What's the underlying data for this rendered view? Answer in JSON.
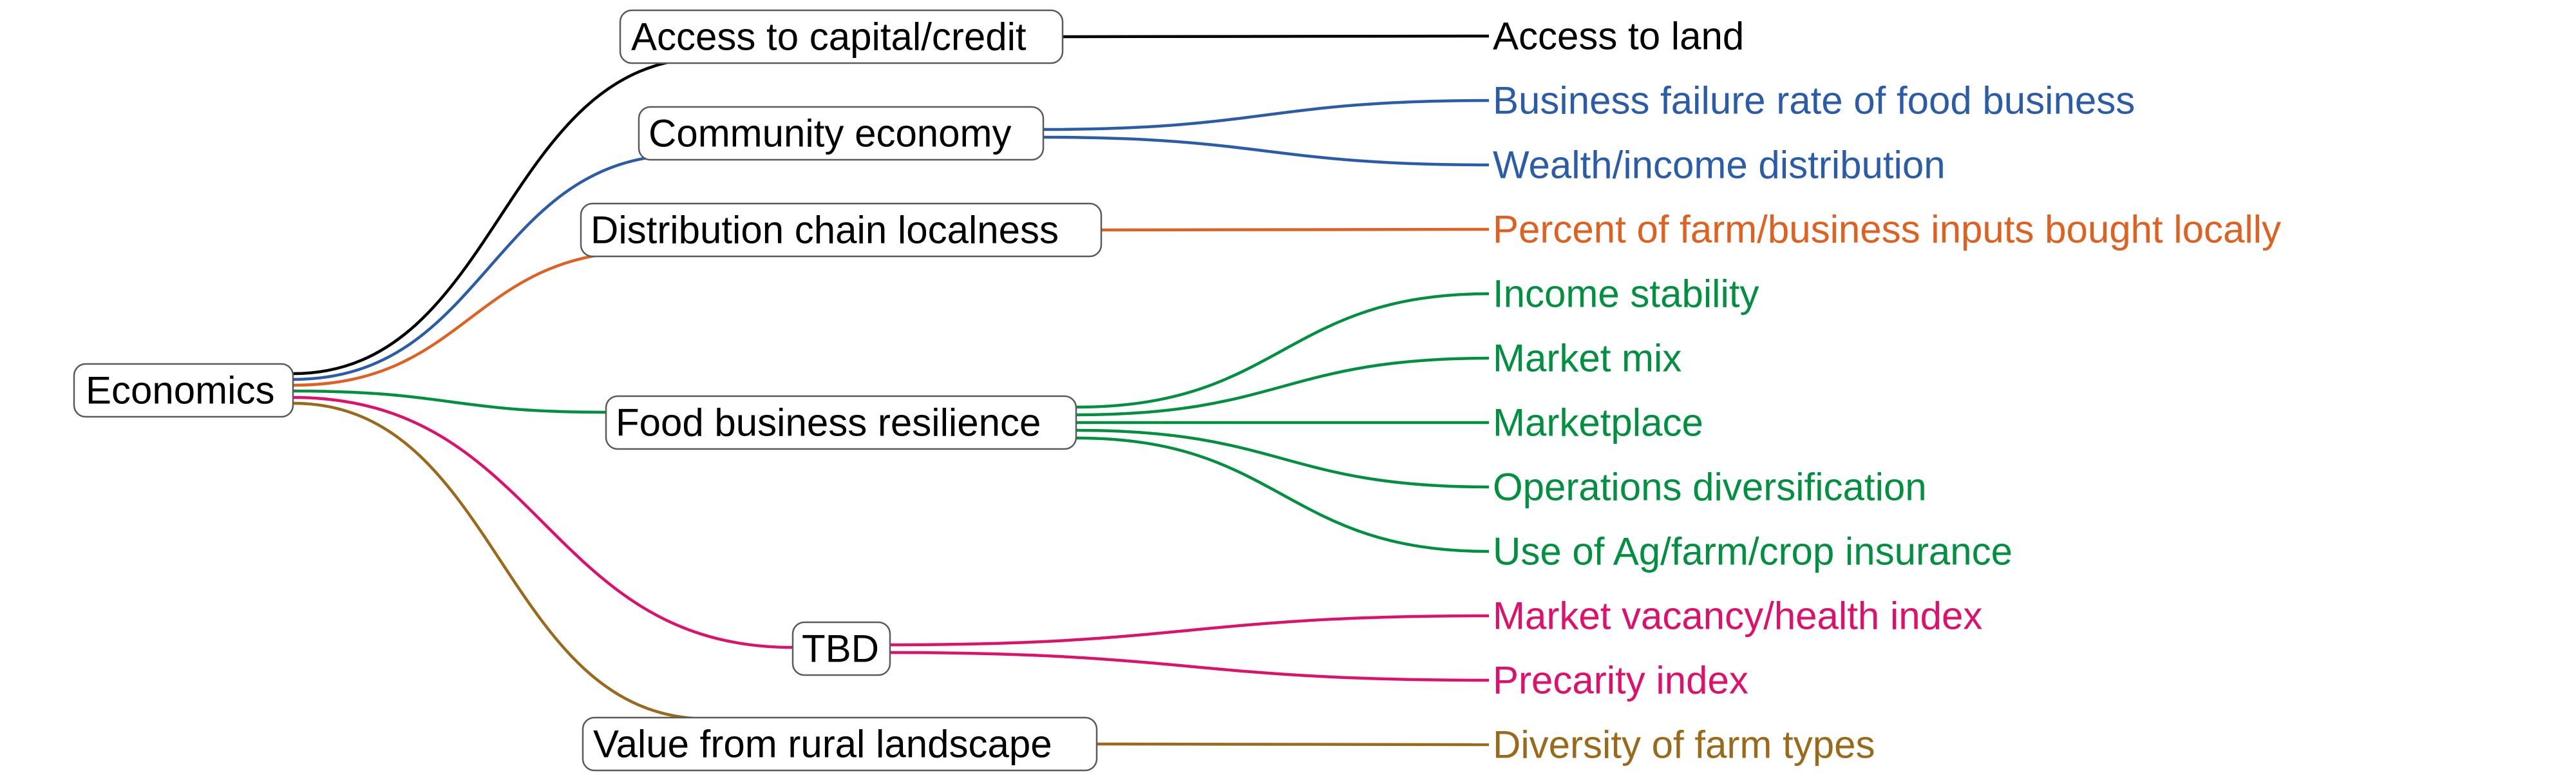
{
  "root": {
    "label": "Economics"
  },
  "branches": [
    {
      "id": "access-capital",
      "label": "Access to capital/credit",
      "color": "#000000",
      "leaves": [
        "Access to land"
      ]
    },
    {
      "id": "community-economy",
      "label": "Community economy",
      "color": "#2a5caa",
      "leaves": [
        "Business failure rate of food business",
        "Wealth/income distribution"
      ]
    },
    {
      "id": "distribution-chain",
      "label": "Distribution chain localness",
      "color": "#e06020",
      "leaves": [
        "Percent of farm/business inputs bought locally"
      ]
    },
    {
      "id": "food-business",
      "label": "Food business resilience",
      "color": "#009040",
      "leaves": [
        "Income stability",
        "Market mix",
        "Marketplace",
        "Operations diversification",
        "Use of Ag/farm/crop insurance"
      ]
    },
    {
      "id": "tbd",
      "label": "TBD",
      "color": "#e0106a",
      "leaves": [
        "Market vacancy/health index",
        "Precarity index"
      ]
    },
    {
      "id": "rural-landscape",
      "label": "Value from rural landscape",
      "color": "#9a6a1a",
      "leaves": [
        "Diversity of farm types"
      ]
    }
  ]
}
